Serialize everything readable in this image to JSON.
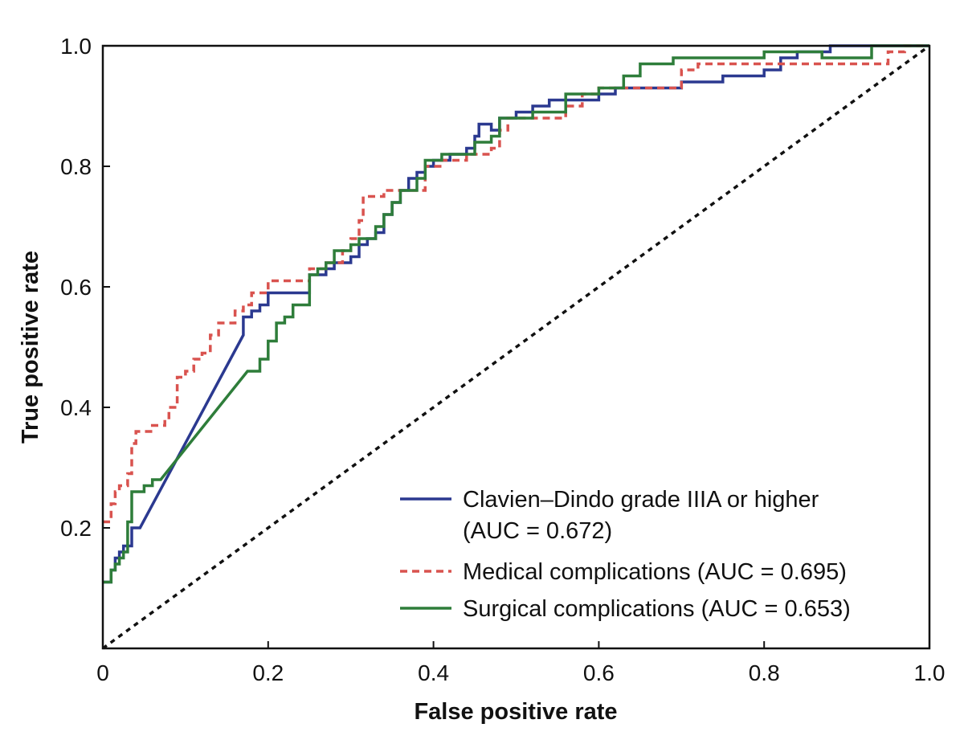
{
  "chart_data": {
    "type": "line",
    "title": "",
    "xlabel": "False positive rate",
    "ylabel": "True positive rate",
    "xlim": [
      0,
      1
    ],
    "ylim": [
      0,
      1
    ],
    "grid": false,
    "legend_position": "bottom-right",
    "x_ticks": [
      {
        "value": 0,
        "label": "0"
      },
      {
        "value": 0.2,
        "label": "0.2"
      },
      {
        "value": 0.4,
        "label": "0.4"
      },
      {
        "value": 0.6,
        "label": "0.6"
      },
      {
        "value": 0.8,
        "label": "0.8"
      },
      {
        "value": 1.0,
        "label": "1.0"
      }
    ],
    "y_ticks": [
      {
        "value": 0.2,
        "label": "0.2"
      },
      {
        "value": 0.4,
        "label": "0.4"
      },
      {
        "value": 0.6,
        "label": "0.6"
      },
      {
        "value": 0.8,
        "label": "0.8"
      },
      {
        "value": 1.0,
        "label": "1.0"
      }
    ],
    "reference_line": {
      "x": [
        0,
        1
      ],
      "y": [
        0,
        1
      ],
      "color": "#111111",
      "style": "dotted"
    },
    "series": [
      {
        "name": "Clavien–Dindo grade IIIA or higher",
        "legend_lines": [
          "Clavien–Dindo grade IIIA or higher",
          "(AUC = 0.672)"
        ],
        "auc": 0.672,
        "color": "#2b3990",
        "style": "solid",
        "points": [
          [
            0,
            0.11
          ],
          [
            0.01,
            0.11
          ],
          [
            0.01,
            0.13
          ],
          [
            0.015,
            0.13
          ],
          [
            0.015,
            0.15
          ],
          [
            0.02,
            0.15
          ],
          [
            0.02,
            0.16
          ],
          [
            0.025,
            0.16
          ],
          [
            0.025,
            0.17
          ],
          [
            0.035,
            0.17
          ],
          [
            0.035,
            0.2
          ],
          [
            0.045,
            0.2
          ],
          [
            0.17,
            0.52
          ],
          [
            0.17,
            0.55
          ],
          [
            0.18,
            0.55
          ],
          [
            0.18,
            0.56
          ],
          [
            0.19,
            0.56
          ],
          [
            0.19,
            0.57
          ],
          [
            0.2,
            0.57
          ],
          [
            0.2,
            0.59
          ],
          [
            0.25,
            0.59
          ],
          [
            0.25,
            0.62
          ],
          [
            0.27,
            0.62
          ],
          [
            0.27,
            0.63
          ],
          [
            0.28,
            0.63
          ],
          [
            0.28,
            0.64
          ],
          [
            0.3,
            0.64
          ],
          [
            0.3,
            0.65
          ],
          [
            0.31,
            0.65
          ],
          [
            0.31,
            0.67
          ],
          [
            0.32,
            0.67
          ],
          [
            0.32,
            0.68
          ],
          [
            0.33,
            0.68
          ],
          [
            0.33,
            0.69
          ],
          [
            0.34,
            0.69
          ],
          [
            0.34,
            0.72
          ],
          [
            0.35,
            0.72
          ],
          [
            0.35,
            0.74
          ],
          [
            0.36,
            0.74
          ],
          [
            0.36,
            0.76
          ],
          [
            0.37,
            0.76
          ],
          [
            0.37,
            0.78
          ],
          [
            0.38,
            0.78
          ],
          [
            0.38,
            0.79
          ],
          [
            0.39,
            0.79
          ],
          [
            0.39,
            0.8
          ],
          [
            0.4,
            0.8
          ],
          [
            0.4,
            0.81
          ],
          [
            0.42,
            0.81
          ],
          [
            0.42,
            0.82
          ],
          [
            0.44,
            0.82
          ],
          [
            0.44,
            0.83
          ],
          [
            0.45,
            0.83
          ],
          [
            0.45,
            0.85
          ],
          [
            0.455,
            0.85
          ],
          [
            0.455,
            0.87
          ],
          [
            0.47,
            0.87
          ],
          [
            0.47,
            0.86
          ],
          [
            0.48,
            0.86
          ],
          [
            0.48,
            0.88
          ],
          [
            0.5,
            0.88
          ],
          [
            0.5,
            0.89
          ],
          [
            0.52,
            0.89
          ],
          [
            0.52,
            0.9
          ],
          [
            0.54,
            0.9
          ],
          [
            0.54,
            0.91
          ],
          [
            0.6,
            0.91
          ],
          [
            0.6,
            0.92
          ],
          [
            0.62,
            0.92
          ],
          [
            0.62,
            0.93
          ],
          [
            0.7,
            0.93
          ],
          [
            0.7,
            0.94
          ],
          [
            0.75,
            0.94
          ],
          [
            0.75,
            0.95
          ],
          [
            0.8,
            0.95
          ],
          [
            0.8,
            0.96
          ],
          [
            0.82,
            0.96
          ],
          [
            0.82,
            0.98
          ],
          [
            0.84,
            0.98
          ],
          [
            0.84,
            0.99
          ],
          [
            0.88,
            0.99
          ],
          [
            0.88,
            1.0
          ],
          [
            1.0,
            1.0
          ]
        ]
      },
      {
        "name": "Medical complications",
        "legend_lines": [
          "Medical complications (AUC = 0.695)"
        ],
        "auc": 0.695,
        "color": "#d9534f",
        "style": "dashed",
        "points": [
          [
            0,
            0.21
          ],
          [
            0.01,
            0.21
          ],
          [
            0.01,
            0.24
          ],
          [
            0.015,
            0.24
          ],
          [
            0.015,
            0.26
          ],
          [
            0.02,
            0.26
          ],
          [
            0.02,
            0.27
          ],
          [
            0.03,
            0.27
          ],
          [
            0.03,
            0.29
          ],
          [
            0.035,
            0.29
          ],
          [
            0.035,
            0.34
          ],
          [
            0.04,
            0.34
          ],
          [
            0.04,
            0.36
          ],
          [
            0.06,
            0.36
          ],
          [
            0.06,
            0.37
          ],
          [
            0.075,
            0.37
          ],
          [
            0.075,
            0.38
          ],
          [
            0.08,
            0.38
          ],
          [
            0.08,
            0.4
          ],
          [
            0.09,
            0.4
          ],
          [
            0.09,
            0.45
          ],
          [
            0.1,
            0.45
          ],
          [
            0.1,
            0.46
          ],
          [
            0.11,
            0.46
          ],
          [
            0.11,
            0.48
          ],
          [
            0.12,
            0.48
          ],
          [
            0.12,
            0.49
          ],
          [
            0.13,
            0.49
          ],
          [
            0.13,
            0.52
          ],
          [
            0.14,
            0.52
          ],
          [
            0.14,
            0.54
          ],
          [
            0.16,
            0.54
          ],
          [
            0.16,
            0.56
          ],
          [
            0.17,
            0.56
          ],
          [
            0.17,
            0.57
          ],
          [
            0.18,
            0.57
          ],
          [
            0.18,
            0.59
          ],
          [
            0.2,
            0.59
          ],
          [
            0.2,
            0.61
          ],
          [
            0.25,
            0.61
          ],
          [
            0.25,
            0.63
          ],
          [
            0.27,
            0.63
          ],
          [
            0.27,
            0.64
          ],
          [
            0.29,
            0.64
          ],
          [
            0.29,
            0.66
          ],
          [
            0.3,
            0.66
          ],
          [
            0.3,
            0.68
          ],
          [
            0.31,
            0.68
          ],
          [
            0.31,
            0.71
          ],
          [
            0.315,
            0.71
          ],
          [
            0.315,
            0.75
          ],
          [
            0.34,
            0.75
          ],
          [
            0.34,
            0.76
          ],
          [
            0.39,
            0.76
          ],
          [
            0.39,
            0.8
          ],
          [
            0.41,
            0.8
          ],
          [
            0.41,
            0.81
          ],
          [
            0.44,
            0.81
          ],
          [
            0.44,
            0.82
          ],
          [
            0.47,
            0.82
          ],
          [
            0.47,
            0.83
          ],
          [
            0.48,
            0.83
          ],
          [
            0.48,
            0.86
          ],
          [
            0.49,
            0.86
          ],
          [
            0.49,
            0.88
          ],
          [
            0.56,
            0.88
          ],
          [
            0.56,
            0.9
          ],
          [
            0.58,
            0.9
          ],
          [
            0.58,
            0.92
          ],
          [
            0.6,
            0.92
          ],
          [
            0.6,
            0.93
          ],
          [
            0.7,
            0.93
          ],
          [
            0.7,
            0.94
          ],
          [
            0.7,
            0.96
          ],
          [
            0.72,
            0.96
          ],
          [
            0.72,
            0.97
          ],
          [
            0.76,
            0.97
          ],
          [
            0.76,
            0.97
          ],
          [
            0.95,
            0.97
          ],
          [
            0.95,
            0.99
          ],
          [
            0.97,
            0.99
          ],
          [
            0.97,
            1.0
          ],
          [
            1.0,
            1.0
          ]
        ]
      },
      {
        "name": "Surgical complications",
        "legend_lines": [
          "Surgical complications (AUC = 0.653)"
        ],
        "auc": 0.653,
        "color": "#2e7d3a",
        "style": "solid",
        "points": [
          [
            0,
            0.11
          ],
          [
            0.01,
            0.11
          ],
          [
            0.01,
            0.13
          ],
          [
            0.015,
            0.13
          ],
          [
            0.015,
            0.14
          ],
          [
            0.02,
            0.14
          ],
          [
            0.02,
            0.15
          ],
          [
            0.025,
            0.15
          ],
          [
            0.025,
            0.16
          ],
          [
            0.03,
            0.16
          ],
          [
            0.03,
            0.21
          ],
          [
            0.035,
            0.21
          ],
          [
            0.035,
            0.26
          ],
          [
            0.05,
            0.26
          ],
          [
            0.05,
            0.27
          ],
          [
            0.06,
            0.27
          ],
          [
            0.06,
            0.28
          ],
          [
            0.07,
            0.28
          ],
          [
            0.175,
            0.46
          ],
          [
            0.19,
            0.46
          ],
          [
            0.19,
            0.48
          ],
          [
            0.2,
            0.48
          ],
          [
            0.2,
            0.51
          ],
          [
            0.21,
            0.51
          ],
          [
            0.21,
            0.54
          ],
          [
            0.22,
            0.54
          ],
          [
            0.22,
            0.55
          ],
          [
            0.23,
            0.55
          ],
          [
            0.23,
            0.57
          ],
          [
            0.25,
            0.57
          ],
          [
            0.25,
            0.62
          ],
          [
            0.26,
            0.62
          ],
          [
            0.26,
            0.63
          ],
          [
            0.27,
            0.63
          ],
          [
            0.27,
            0.64
          ],
          [
            0.28,
            0.64
          ],
          [
            0.28,
            0.66
          ],
          [
            0.3,
            0.66
          ],
          [
            0.3,
            0.67
          ],
          [
            0.31,
            0.67
          ],
          [
            0.31,
            0.68
          ],
          [
            0.33,
            0.68
          ],
          [
            0.33,
            0.7
          ],
          [
            0.34,
            0.7
          ],
          [
            0.34,
            0.72
          ],
          [
            0.35,
            0.72
          ],
          [
            0.35,
            0.74
          ],
          [
            0.36,
            0.74
          ],
          [
            0.36,
            0.76
          ],
          [
            0.38,
            0.76
          ],
          [
            0.38,
            0.78
          ],
          [
            0.39,
            0.78
          ],
          [
            0.39,
            0.81
          ],
          [
            0.41,
            0.81
          ],
          [
            0.41,
            0.82
          ],
          [
            0.45,
            0.82
          ],
          [
            0.45,
            0.84
          ],
          [
            0.47,
            0.84
          ],
          [
            0.47,
            0.85
          ],
          [
            0.48,
            0.85
          ],
          [
            0.48,
            0.88
          ],
          [
            0.52,
            0.88
          ],
          [
            0.52,
            0.89
          ],
          [
            0.56,
            0.89
          ],
          [
            0.56,
            0.92
          ],
          [
            0.6,
            0.92
          ],
          [
            0.6,
            0.93
          ],
          [
            0.63,
            0.93
          ],
          [
            0.63,
            0.95
          ],
          [
            0.65,
            0.95
          ],
          [
            0.65,
            0.97
          ],
          [
            0.69,
            0.97
          ],
          [
            0.69,
            0.98
          ],
          [
            0.71,
            0.98
          ],
          [
            0.71,
            0.98
          ],
          [
            0.8,
            0.98
          ],
          [
            0.8,
            0.99
          ],
          [
            0.87,
            0.99
          ],
          [
            0.87,
            0.98
          ],
          [
            0.93,
            0.98
          ],
          [
            0.93,
            1.0
          ],
          [
            1.0,
            1.0
          ]
        ]
      }
    ]
  }
}
